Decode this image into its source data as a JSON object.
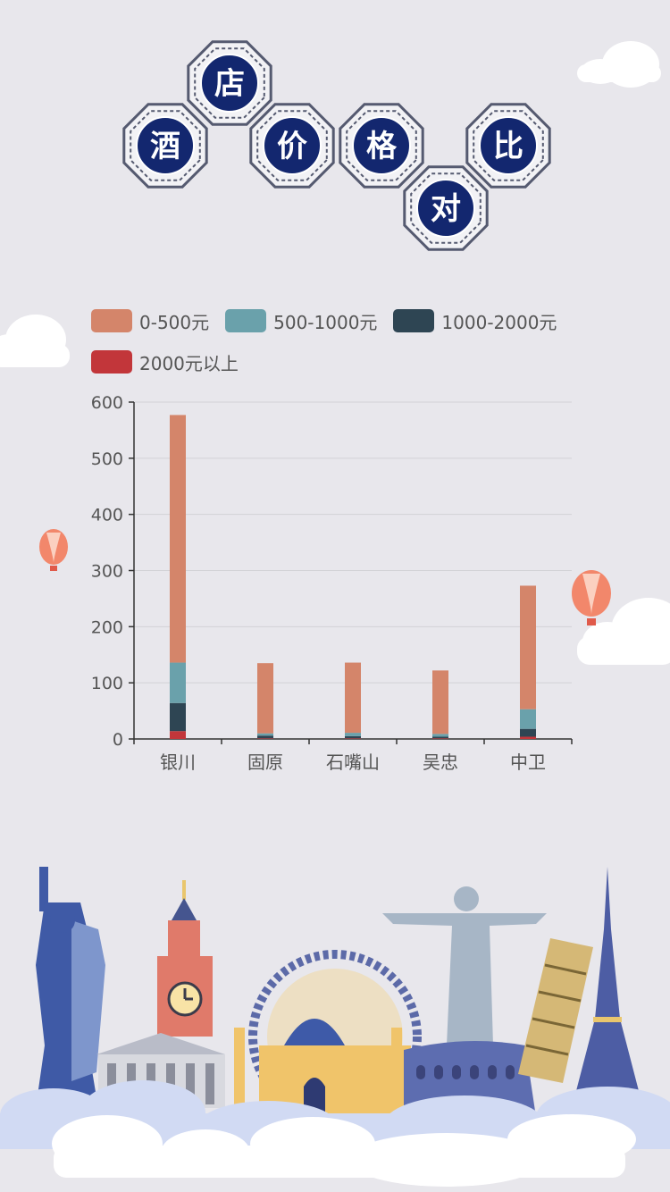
{
  "title": {
    "chars": [
      "酒",
      "店",
      "价",
      "格",
      "对",
      "比"
    ],
    "text": "酒店价格对比"
  },
  "colors": {
    "background": "#e8e7ec",
    "badge_navy": "#13276f",
    "frame_gray": "#555a70"
  },
  "legend": [
    {
      "label": "0-500元",
      "color": "#d4856a"
    },
    {
      "label": "500-1000元",
      "color": "#6aa1ab"
    },
    {
      "label": "1000-2000元",
      "color": "#2e4553"
    },
    {
      "label": "2000元以上",
      "color": "#c2363a"
    }
  ],
  "chart_data": {
    "type": "bar",
    "stacked": true,
    "title": "酒店价格对比",
    "categories": [
      "银川",
      "固原",
      "石嘴山",
      "吴忠",
      "中卫"
    ],
    "series": [
      {
        "name": "2000元以上",
        "color": "#c2363a",
        "values": [
          14,
          1,
          1,
          1,
          4
        ]
      },
      {
        "name": "1000-2000元",
        "color": "#2e4553",
        "values": [
          50,
          5,
          4,
          3,
          14
        ]
      },
      {
        "name": "500-1000元",
        "color": "#6aa1ab",
        "values": [
          72,
          4,
          6,
          5,
          35
        ]
      },
      {
        "name": "0-500元",
        "color": "#d4856a",
        "values": [
          441,
          125,
          125,
          113,
          220
        ]
      }
    ],
    "ylim": [
      0,
      600
    ],
    "yticks": [
      0,
      100,
      200,
      300,
      400,
      500,
      600
    ],
    "xlabel": "",
    "ylabel": "",
    "grid": true,
    "legend_position": "top"
  },
  "decorations": {
    "landmarks": [
      "statue-of-liberty",
      "big-ben",
      "ferris-wheel",
      "taj-mahal",
      "christ-the-redeemer",
      "colosseum",
      "leaning-tower-of-pisa",
      "eiffel-tower"
    ]
  }
}
